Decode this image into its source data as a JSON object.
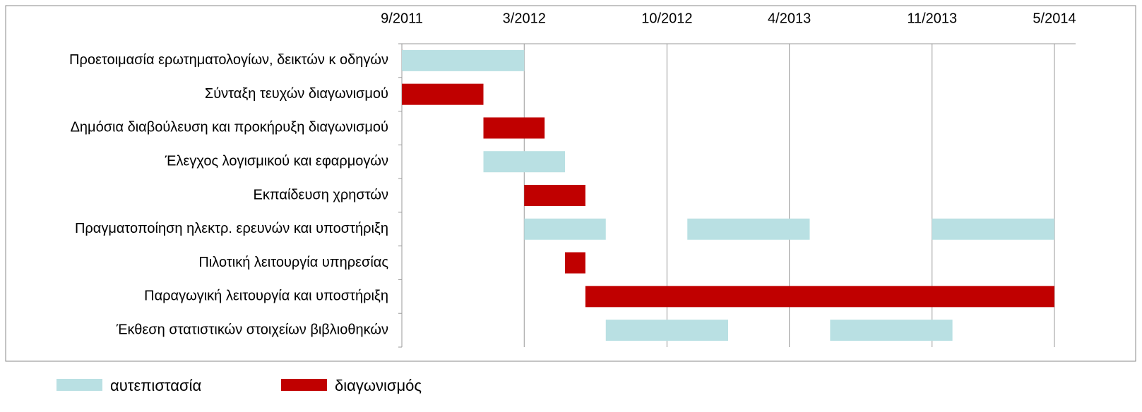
{
  "chart_data": {
    "type": "gantt",
    "series": [
      {
        "name": "αυτεπιστασία",
        "color": "#b9e0e3"
      },
      {
        "name": "διαγωνισμός",
        "color": "#c00000"
      }
    ],
    "tasks": [
      {
        "name": "Προετοιμασία ερωτηματολογίων, δεικτών κ οδηγών",
        "bars": [
          {
            "series": 1,
            "start": "2011-09",
            "end": "2011-09"
          },
          {
            "series": 0,
            "start": "2011-09",
            "end": "2012-03"
          }
        ]
      },
      {
        "name": "Σύνταξη τευχών διαγωνισμού",
        "bars": [
          {
            "series": 1,
            "start": "2011-09",
            "end": "2012-01"
          }
        ]
      },
      {
        "name": "Δημόσια διαβούλευση και προκήρυξη διαγωνισμού",
        "bars": [
          {
            "series": 1,
            "start": "2012-01",
            "end": "2012-04"
          }
        ]
      },
      {
        "name": "Έλεγχος λογισμικού και εφαρμογών",
        "bars": [
          {
            "series": 0,
            "start": "2012-01",
            "end": "2012-05"
          }
        ]
      },
      {
        "name": "Εκπαίδευση χρηστών",
        "bars": [
          {
            "series": 1,
            "start": "2012-03",
            "end": "2012-06"
          }
        ]
      },
      {
        "name": "Πραγματοποίηση ηλεκτρ. ερευνών και υποστήριξη",
        "bars": [
          {
            "series": 0,
            "start": "2012-03",
            "end": "2012-07"
          },
          {
            "series": 0,
            "start": "2012-11",
            "end": "2013-05"
          },
          {
            "series": 0,
            "start": "2013-11",
            "end": "2014-05"
          }
        ]
      },
      {
        "name": "Πιλοτική λειτουργία υπηρεσίας",
        "bars": [
          {
            "series": 1,
            "start": "2012-05",
            "end": "2012-06"
          }
        ]
      },
      {
        "name": "Παραγωγική λειτουργία και υποστήριξη",
        "bars": [
          {
            "series": 1,
            "start": "2012-06",
            "end": "2014-05"
          }
        ]
      },
      {
        "name": "Έκθεση στατιστικών στοιχείων βιβλιοθηκών",
        "bars": [
          {
            "series": 0,
            "start": "2012-07",
            "end": "2013-01"
          },
          {
            "series": 0,
            "start": "2013-06",
            "end": "2013-12"
          }
        ]
      }
    ],
    "xlim": [
      "2011-09",
      "2014-05"
    ],
    "xticks": [
      {
        "value": "2011-09",
        "label": "9/2011"
      },
      {
        "value": "2012-03",
        "label": "3/2012"
      },
      {
        "value": "2012-10",
        "label": "10/2012"
      },
      {
        "value": "2013-04",
        "label": "4/2013"
      },
      {
        "value": "2013-11",
        "label": "11/2013"
      },
      {
        "value": "2014-05",
        "label": "5/2014"
      }
    ],
    "grid": true
  }
}
